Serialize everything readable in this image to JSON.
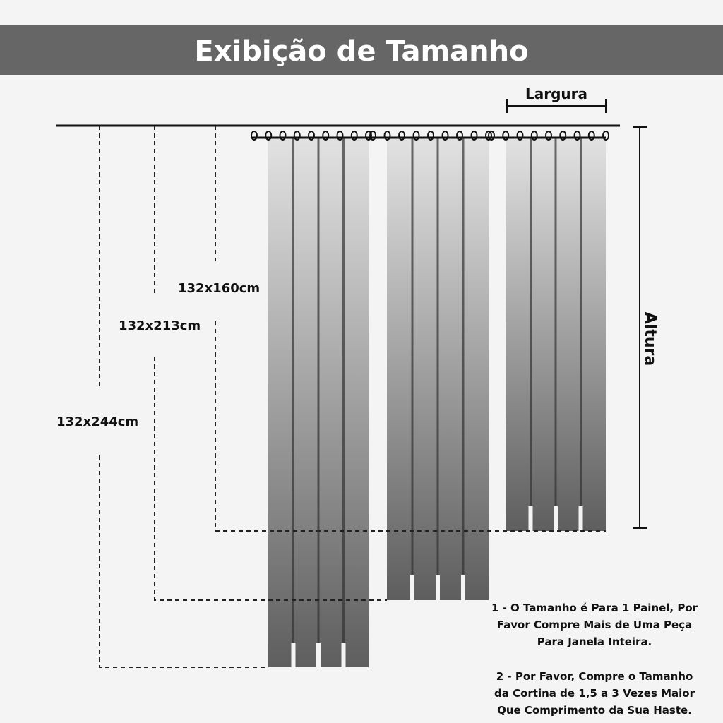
{
  "header": {
    "title": "Exibição de Tamanho"
  },
  "dimensions": {
    "width_label": "Largura",
    "height_label": "Altura"
  },
  "sizes": [
    "132x160cm",
    "132x213cm",
    "132x244cm"
  ],
  "notes": [
    [
      "1 - O Tamanho é Para 1 Painel, Por",
      "Favor Compre Mais de Uma Peça",
      "Para Janela Inteira."
    ],
    [
      "2 - Por Favor, Compre o Tamanho",
      "da Cortina de 1,5 a 3 Vezes Maior",
      "Que Comprimento da Sua Haste."
    ]
  ]
}
